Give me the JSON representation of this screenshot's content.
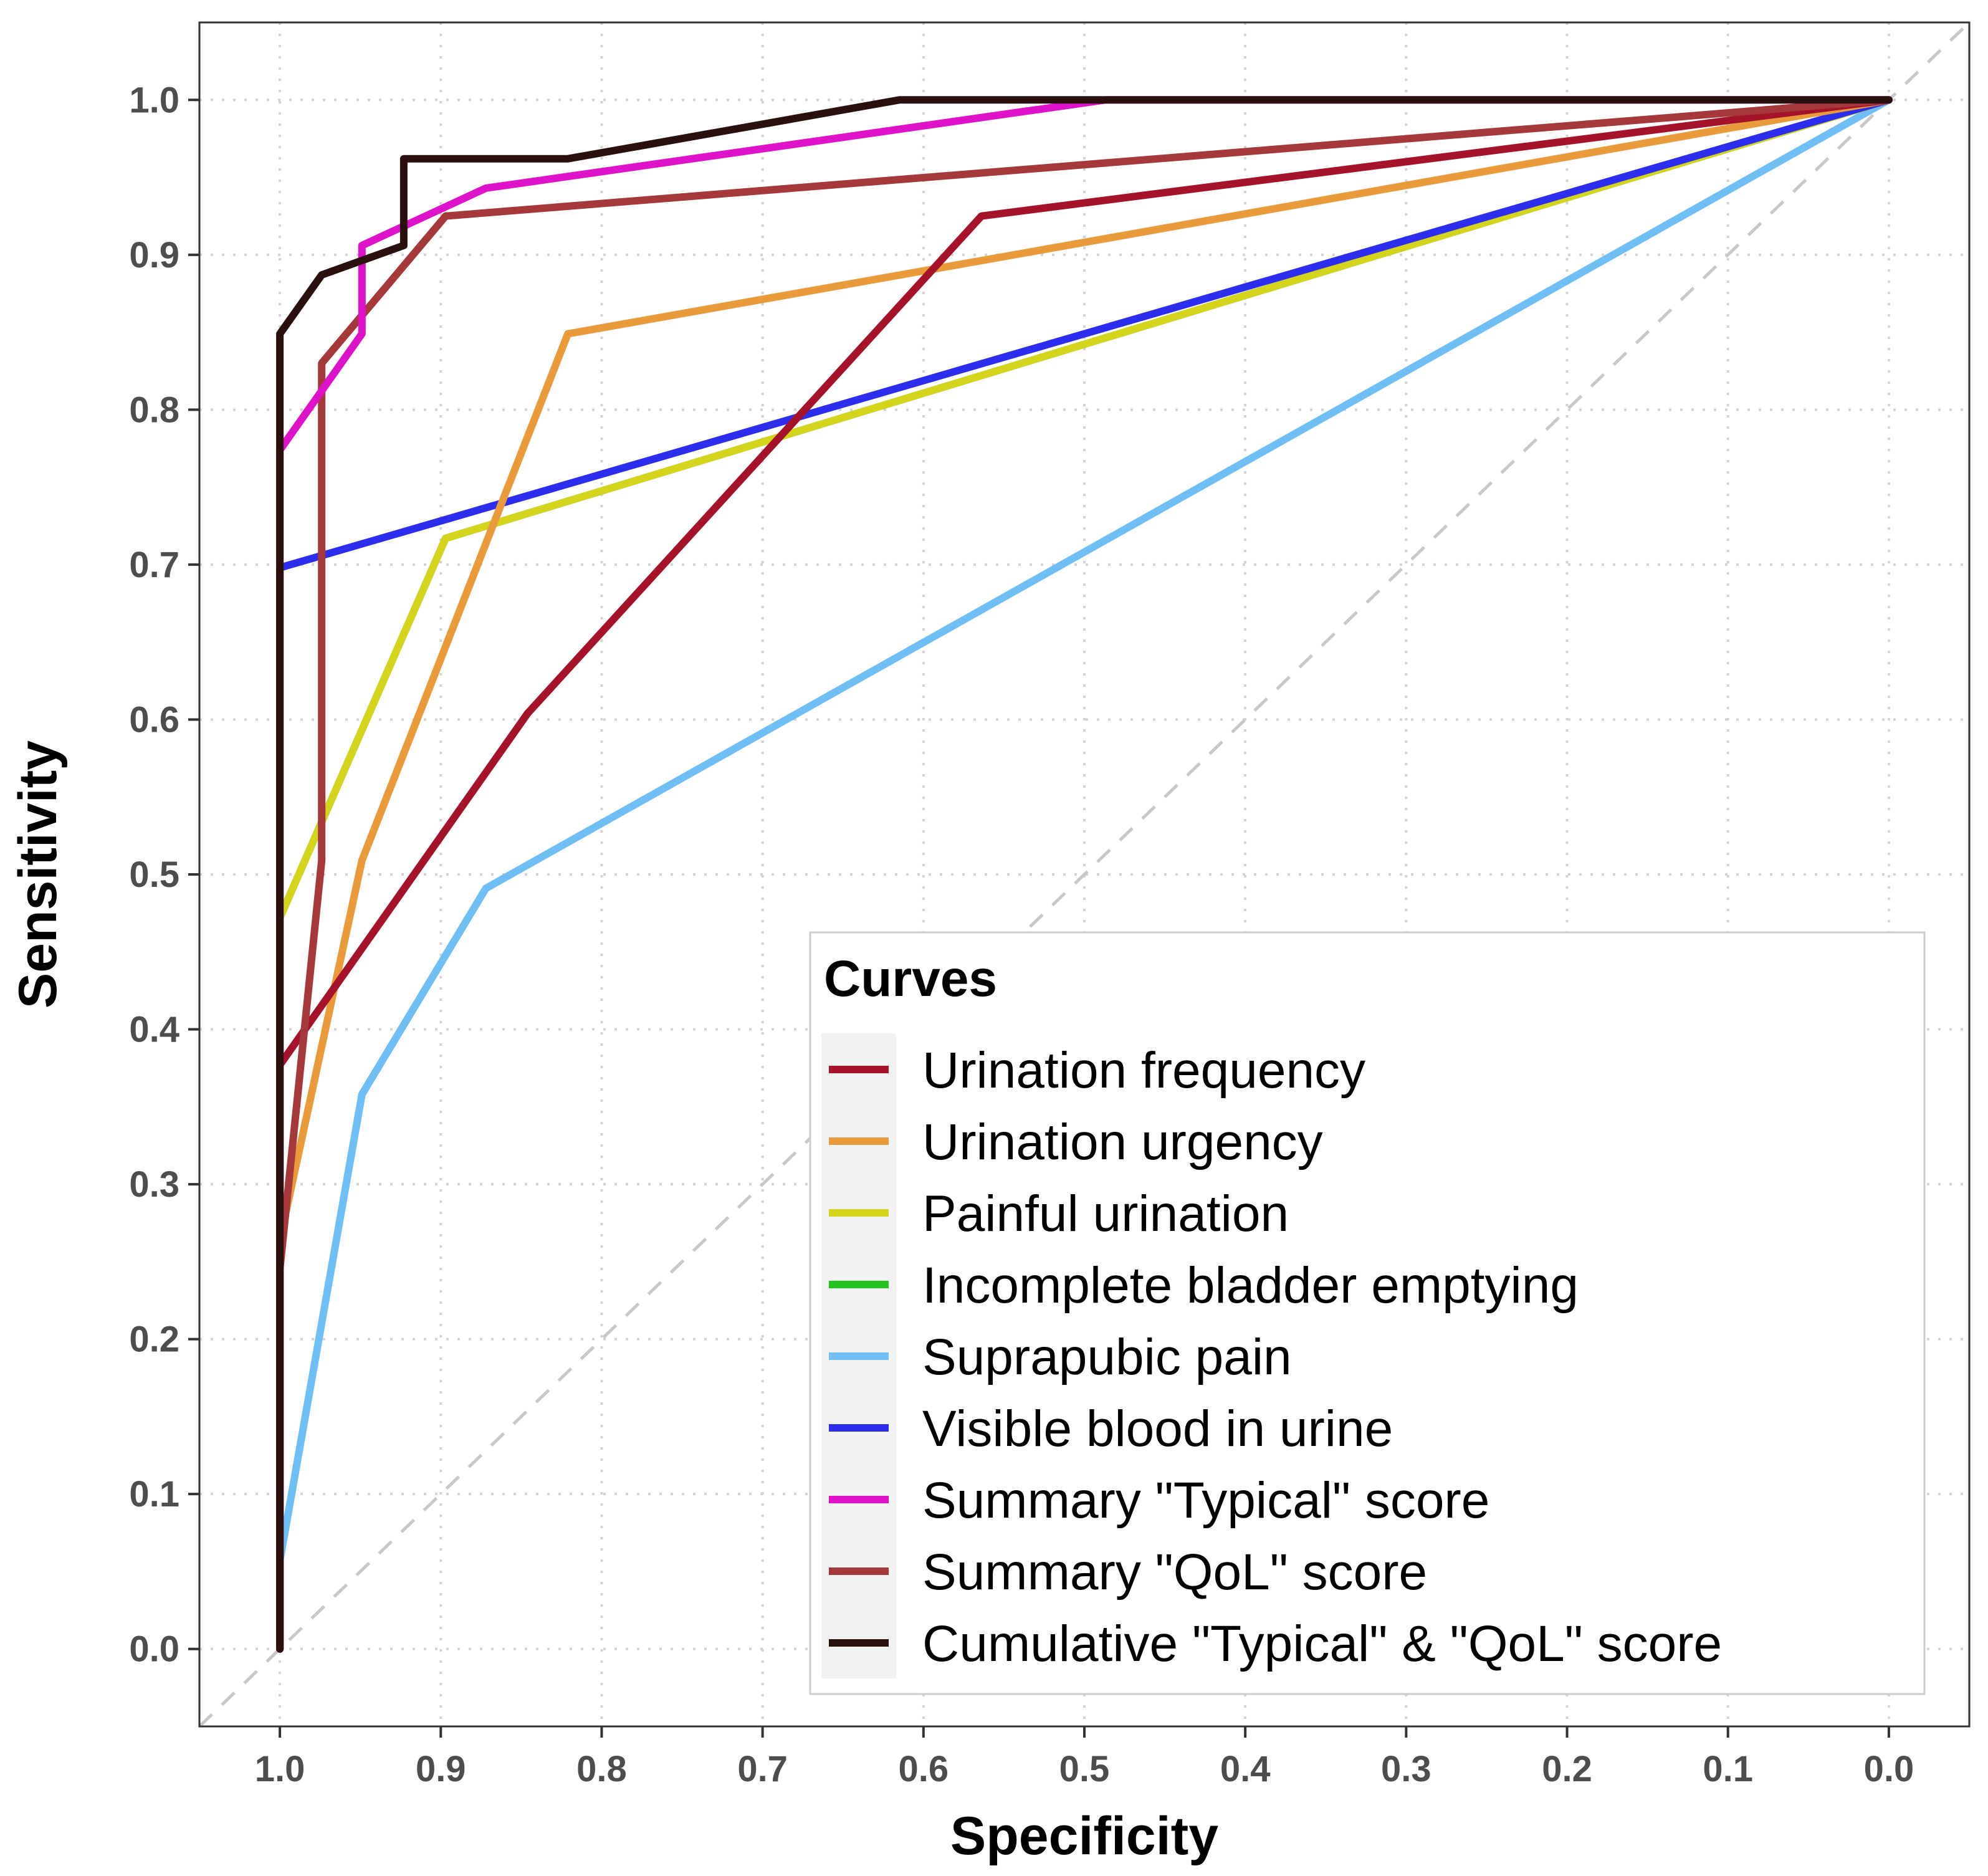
{
  "chart_data": {
    "type": "line",
    "title": "",
    "xlabel": "Specificity",
    "ylabel": "Sensitivity",
    "xlim": [
      1.05,
      -0.05
    ],
    "ylim": [
      -0.05,
      1.05
    ],
    "x_reversed": true,
    "grid": true,
    "xticks": [
      "1.0",
      "0.9",
      "0.8",
      "0.7",
      "0.6",
      "0.5",
      "0.4",
      "0.3",
      "0.2",
      "0.1",
      "0.0"
    ],
    "yticks": [
      "0.0",
      "0.1",
      "0.2",
      "0.3",
      "0.4",
      "0.5",
      "0.6",
      "0.7",
      "0.8",
      "0.9",
      "1.0"
    ],
    "reference_line": {
      "from": [
        1,
        0
      ],
      "to": [
        0,
        1
      ],
      "style": "dashed"
    },
    "legend": {
      "title": "Curves",
      "position": "bottom-right"
    },
    "series": [
      {
        "name": "Urination frequency",
        "color": "#a5132b",
        "x": [
          1.0,
          1.0,
          0.846,
          0.564,
          0.0
        ],
        "y": [
          0.0,
          0.377,
          0.604,
          0.925,
          1.0
        ]
      },
      {
        "name": "Urination urgency",
        "color": "#e99a3a",
        "x": [
          1.0,
          1.0,
          0.949,
          0.821,
          0.0
        ],
        "y": [
          0.0,
          0.264,
          0.509,
          0.849,
          1.0
        ]
      },
      {
        "name": "Painful urination",
        "color": "#d4d41c",
        "x": [
          1.0,
          1.0,
          0.897,
          0.0
        ],
        "y": [
          0.0,
          0.472,
          0.717,
          1.0
        ]
      },
      {
        "name": "Incomplete bladder emptying",
        "color": "#22c41c",
        "x": [
          1.0,
          1.0,
          0.897,
          0.0
        ],
        "y": [
          0.0,
          0.472,
          0.717,
          1.0
        ]
      },
      {
        "name": "Suprapubic pain",
        "color": "#6fbff5",
        "x": [
          1.0,
          1.0,
          0.949,
          0.872,
          0.0
        ],
        "y": [
          0.0,
          0.057,
          0.358,
          0.491,
          1.0
        ]
      },
      {
        "name": "Visible blood in urine",
        "color": "#2d2ded",
        "x": [
          1.0,
          1.0,
          0.0
        ],
        "y": [
          0.0,
          0.698,
          1.0
        ]
      },
      {
        "name": "Summary \"Typical\" score",
        "color": "#de12c9",
        "x": [
          1.0,
          1.0,
          0.949,
          0.949,
          0.872,
          0.487,
          0.0
        ],
        "y": [
          0.0,
          0.774,
          0.849,
          0.906,
          0.943,
          1.0,
          1.0
        ]
      },
      {
        "name": "Summary \"QoL\" score",
        "color": "#a5383a",
        "x": [
          1.0,
          1.0,
          0.974,
          0.974,
          0.897,
          0.0
        ],
        "y": [
          0.0,
          0.245,
          0.509,
          0.83,
          0.925,
          1.0
        ]
      },
      {
        "name": "Cumulative \"Typical\" & \"QoL\" score",
        "color": "#2a0f0f",
        "x": [
          1.0,
          1.0,
          0.974,
          0.923,
          0.923,
          0.821,
          0.615,
          0.0
        ],
        "y": [
          0.0,
          0.849,
          0.887,
          0.906,
          0.962,
          0.962,
          1.0,
          1.0
        ]
      }
    ]
  }
}
